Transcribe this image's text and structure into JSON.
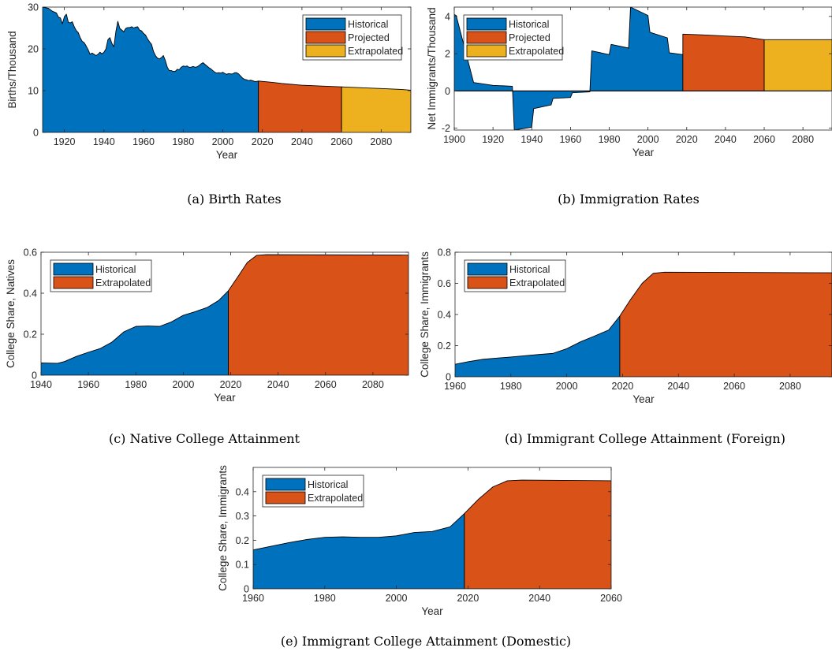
{
  "colors": {
    "historical": "#0072BD",
    "projected": "#D95319",
    "extrapolated": "#EDB120",
    "axis": "#262626"
  },
  "chart_data": [
    {
      "id": "a",
      "type": "area",
      "caption": "(a)  Birth Rates",
      "xlabel": "Year",
      "ylabel": "Births/Thousand",
      "xlim": [
        1909,
        2095
      ],
      "ylim": [
        0,
        30
      ],
      "xticks": [
        1920,
        1940,
        1960,
        1980,
        2000,
        2020,
        2040,
        2060,
        2080
      ],
      "yticks": [
        0,
        10,
        20,
        30
      ],
      "legend": "top-right",
      "step": false,
      "series": [
        {
          "name": "Historical",
          "color_key": "historical",
          "points": [
            [
              1909,
              30.0
            ],
            [
              1912,
              29.7
            ],
            [
              1914,
              29.0
            ],
            [
              1916,
              28.6
            ],
            [
              1917,
              27.6
            ],
            [
              1918,
              27.4
            ],
            [
              1919,
              26.0
            ],
            [
              1920,
              27.7
            ],
            [
              1921,
              28.3
            ],
            [
              1922,
              26.4
            ],
            [
              1923,
              26.2
            ],
            [
              1924,
              26.5
            ],
            [
              1925,
              25.3
            ],
            [
              1926,
              24.4
            ],
            [
              1927,
              23.9
            ],
            [
              1928,
              22.7
            ],
            [
              1929,
              21.8
            ],
            [
              1930,
              21.5
            ],
            [
              1931,
              20.7
            ],
            [
              1932,
              19.8
            ],
            [
              1933,
              18.7
            ],
            [
              1934,
              19.0
            ],
            [
              1935,
              18.7
            ],
            [
              1936,
              18.4
            ],
            [
              1937,
              18.7
            ],
            [
              1938,
              19.2
            ],
            [
              1939,
              18.8
            ],
            [
              1940,
              19.2
            ],
            [
              1941,
              20.0
            ],
            [
              1942,
              22.2
            ],
            [
              1943,
              22.7
            ],
            [
              1944,
              21.3
            ],
            [
              1945,
              20.5
            ],
            [
              1946,
              24.1
            ],
            [
              1947,
              26.6
            ],
            [
              1948,
              24.9
            ],
            [
              1949,
              24.5
            ],
            [
              1950,
              24.1
            ],
            [
              1951,
              24.9
            ],
            [
              1952,
              25.1
            ],
            [
              1953,
              25.1
            ],
            [
              1954,
              25.3
            ],
            [
              1955,
              25.0
            ],
            [
              1956,
              25.2
            ],
            [
              1957,
              25.3
            ],
            [
              1958,
              24.5
            ],
            [
              1959,
              24.3
            ],
            [
              1960,
              23.7
            ],
            [
              1961,
              23.3
            ],
            [
              1962,
              22.4
            ],
            [
              1963,
              21.7
            ],
            [
              1964,
              21.1
            ],
            [
              1965,
              19.4
            ],
            [
              1966,
              18.4
            ],
            [
              1967,
              17.8
            ],
            [
              1968,
              17.6
            ],
            [
              1969,
              17.9
            ],
            [
              1970,
              18.4
            ],
            [
              1971,
              17.2
            ],
            [
              1972,
              15.6
            ],
            [
              1973,
              14.8
            ],
            [
              1974,
              14.8
            ],
            [
              1975,
              14.6
            ],
            [
              1976,
              14.6
            ],
            [
              1977,
              15.1
            ],
            [
              1978,
              15.0
            ],
            [
              1979,
              15.6
            ],
            [
              1980,
              15.9
            ],
            [
              1981,
              15.8
            ],
            [
              1982,
              15.9
            ],
            [
              1983,
              15.6
            ],
            [
              1984,
              15.6
            ],
            [
              1985,
              15.8
            ],
            [
              1986,
              15.6
            ],
            [
              1987,
              15.7
            ],
            [
              1988,
              16.0
            ],
            [
              1989,
              16.4
            ],
            [
              1990,
              16.7
            ],
            [
              1991,
              16.3
            ],
            [
              1992,
              15.9
            ],
            [
              1993,
              15.5
            ],
            [
              1994,
              15.2
            ],
            [
              1995,
              14.8
            ],
            [
              1996,
              14.4
            ],
            [
              1997,
              14.2
            ],
            [
              1998,
              14.3
            ],
            [
              1999,
              14.2
            ],
            [
              2000,
              14.4
            ],
            [
              2001,
              14.1
            ],
            [
              2002,
              13.9
            ],
            [
              2003,
              14.1
            ],
            [
              2004,
              14.0
            ],
            [
              2005,
              14.0
            ],
            [
              2006,
              14.3
            ],
            [
              2007,
              14.3
            ],
            [
              2008,
              14.0
            ],
            [
              2009,
              13.5
            ],
            [
              2010,
              13.0
            ],
            [
              2011,
              12.7
            ],
            [
              2012,
              12.6
            ],
            [
              2013,
              12.4
            ],
            [
              2014,
              12.5
            ],
            [
              2015,
              12.4
            ],
            [
              2016,
              12.2
            ],
            [
              2017,
              12.2
            ],
            [
              2018,
              12.3
            ]
          ]
        },
        {
          "name": "Projected",
          "color_key": "projected",
          "points": [
            [
              2018,
              12.3
            ],
            [
              2025,
              12.0
            ],
            [
              2030,
              11.7
            ],
            [
              2040,
              11.3
            ],
            [
              2050,
              11.1
            ],
            [
              2060,
              10.9
            ]
          ]
        },
        {
          "name": "Extrapolated",
          "color_key": "extrapolated",
          "points": [
            [
              2060,
              10.9
            ],
            [
              2070,
              10.7
            ],
            [
              2080,
              10.5
            ],
            [
              2090,
              10.3
            ],
            [
              2095,
              10.1
            ]
          ]
        }
      ]
    },
    {
      "id": "b",
      "type": "area",
      "caption": "(b)  Immigration Rates",
      "xlabel": "Year",
      "ylabel": "Net Immigrants/Thousand",
      "xlim": [
        1900,
        2095
      ],
      "ylim": [
        -2.1,
        4.5
      ],
      "xticks": [
        1900,
        1920,
        1940,
        1960,
        1980,
        2000,
        2020,
        2040,
        2060,
        2080
      ],
      "yticks": [
        -2,
        0,
        2,
        4
      ],
      "legend": "top-left",
      "step": true,
      "series": [
        {
          "name": "Historical",
          "color_key": "historical",
          "points": [
            [
              1900,
              4.1
            ],
            [
              1901,
              4.05
            ],
            [
              1910,
              0.45
            ],
            [
              1920,
              0.3
            ],
            [
              1930,
              0.25
            ],
            [
              1931,
              -2.1
            ],
            [
              1940,
              -1.95
            ],
            [
              1941,
              -0.95
            ],
            [
              1950,
              -0.75
            ],
            [
              1951,
              -0.4
            ],
            [
              1960,
              -0.35
            ],
            [
              1961,
              -0.1
            ],
            [
              1970,
              -0.05
            ],
            [
              1971,
              2.15
            ],
            [
              1980,
              1.95
            ],
            [
              1981,
              2.5
            ],
            [
              1990,
              2.3
            ],
            [
              1991,
              4.5
            ],
            [
              2000,
              4.05
            ],
            [
              2001,
              3.15
            ],
            [
              2010,
              2.85
            ],
            [
              2011,
              2.05
            ],
            [
              2018,
              1.95
            ]
          ]
        },
        {
          "name": "Projected",
          "color_key": "projected",
          "points": [
            [
              2018,
              3.05
            ],
            [
              2030,
              3.0
            ],
            [
              2040,
              2.95
            ],
            [
              2050,
              2.9
            ],
            [
              2060,
              2.75
            ]
          ]
        },
        {
          "name": "Extrapolated",
          "color_key": "extrapolated",
          "points": [
            [
              2060,
              2.75
            ],
            [
              2095,
              2.75
            ]
          ]
        }
      ]
    },
    {
      "id": "c",
      "type": "area",
      "caption": "(c)  Native College Attainment",
      "xlabel": "Year",
      "ylabel": "College Share, Natives",
      "xlim": [
        1940,
        2095
      ],
      "ylim": [
        0,
        0.6
      ],
      "xticks": [
        1940,
        1960,
        1980,
        2000,
        2020,
        2040,
        2060,
        2080
      ],
      "yticks": [
        0,
        0.2,
        0.4,
        0.6
      ],
      "legend": "top-left",
      "step": false,
      "series": [
        {
          "name": "Historical",
          "color_key": "historical",
          "points": [
            [
              1940,
              0.06
            ],
            [
              1947,
              0.058
            ],
            [
              1950,
              0.067
            ],
            [
              1955,
              0.092
            ],
            [
              1960,
              0.112
            ],
            [
              1965,
              0.13
            ],
            [
              1970,
              0.162
            ],
            [
              1975,
              0.212
            ],
            [
              1980,
              0.238
            ],
            [
              1985,
              0.24
            ],
            [
              1990,
              0.238
            ],
            [
              1995,
              0.26
            ],
            [
              2000,
              0.292
            ],
            [
              2005,
              0.31
            ],
            [
              2010,
              0.33
            ],
            [
              2015,
              0.365
            ],
            [
              2019,
              0.412
            ]
          ]
        },
        {
          "name": "Extrapolated",
          "color_key": "projected",
          "points": [
            [
              2019,
              0.412
            ],
            [
              2023,
              0.48
            ],
            [
              2027,
              0.55
            ],
            [
              2031,
              0.585
            ],
            [
              2035,
              0.588
            ],
            [
              2095,
              0.586
            ]
          ]
        }
      ]
    },
    {
      "id": "d",
      "type": "area",
      "caption": "(d)  Immigrant College Attainment (Foreign)",
      "xlabel": "Year",
      "ylabel": "College Share, Immigrants",
      "xlim": [
        1960,
        2095
      ],
      "ylim": [
        0,
        0.8
      ],
      "xticks": [
        1960,
        1980,
        2000,
        2020,
        2040,
        2060,
        2080
      ],
      "yticks": [
        0,
        0.2,
        0.4,
        0.6,
        0.8
      ],
      "legend": "top-left",
      "step": false,
      "series": [
        {
          "name": "Historical",
          "color_key": "historical",
          "points": [
            [
              1960,
              0.08
            ],
            [
              1965,
              0.098
            ],
            [
              1970,
              0.112
            ],
            [
              1975,
              0.12
            ],
            [
              1980,
              0.127
            ],
            [
              1985,
              0.135
            ],
            [
              1990,
              0.143
            ],
            [
              1995,
              0.15
            ],
            [
              2000,
              0.18
            ],
            [
              2005,
              0.225
            ],
            [
              2010,
              0.262
            ],
            [
              2015,
              0.3
            ],
            [
              2019,
              0.39
            ]
          ]
        },
        {
          "name": "Extrapolated",
          "color_key": "projected",
          "points": [
            [
              2019,
              0.39
            ],
            [
              2023,
              0.5
            ],
            [
              2027,
              0.6
            ],
            [
              2031,
              0.665
            ],
            [
              2035,
              0.672
            ],
            [
              2095,
              0.668
            ]
          ]
        }
      ]
    },
    {
      "id": "e",
      "type": "area",
      "caption": "(e)  Immigrant College Attainment (Domestic)",
      "xlabel": "Year",
      "ylabel": "College Share, Immigrants",
      "xlim": [
        1960,
        2060
      ],
      "ylim": [
        0,
        0.5
      ],
      "xticks": [
        1960,
        1980,
        2000,
        2020,
        2040,
        2060
      ],
      "yticks": [
        0,
        0.1,
        0.2,
        0.3,
        0.4
      ],
      "legend": "top-left",
      "step": false,
      "series": [
        {
          "name": "Historical",
          "color_key": "historical",
          "points": [
            [
              1960,
              0.16
            ],
            [
              1965,
              0.175
            ],
            [
              1970,
              0.19
            ],
            [
              1975,
              0.203
            ],
            [
              1980,
              0.212
            ],
            [
              1985,
              0.214
            ],
            [
              1990,
              0.212
            ],
            [
              1995,
              0.212
            ],
            [
              2000,
              0.218
            ],
            [
              2005,
              0.232
            ],
            [
              2010,
              0.236
            ],
            [
              2015,
              0.255
            ],
            [
              2019,
              0.31
            ]
          ]
        },
        {
          "name": "Extrapolated",
          "color_key": "projected",
          "points": [
            [
              2019,
              0.31
            ],
            [
              2023,
              0.37
            ],
            [
              2027,
              0.42
            ],
            [
              2031,
              0.445
            ],
            [
              2035,
              0.448
            ],
            [
              2060,
              0.445
            ]
          ]
        }
      ]
    }
  ]
}
